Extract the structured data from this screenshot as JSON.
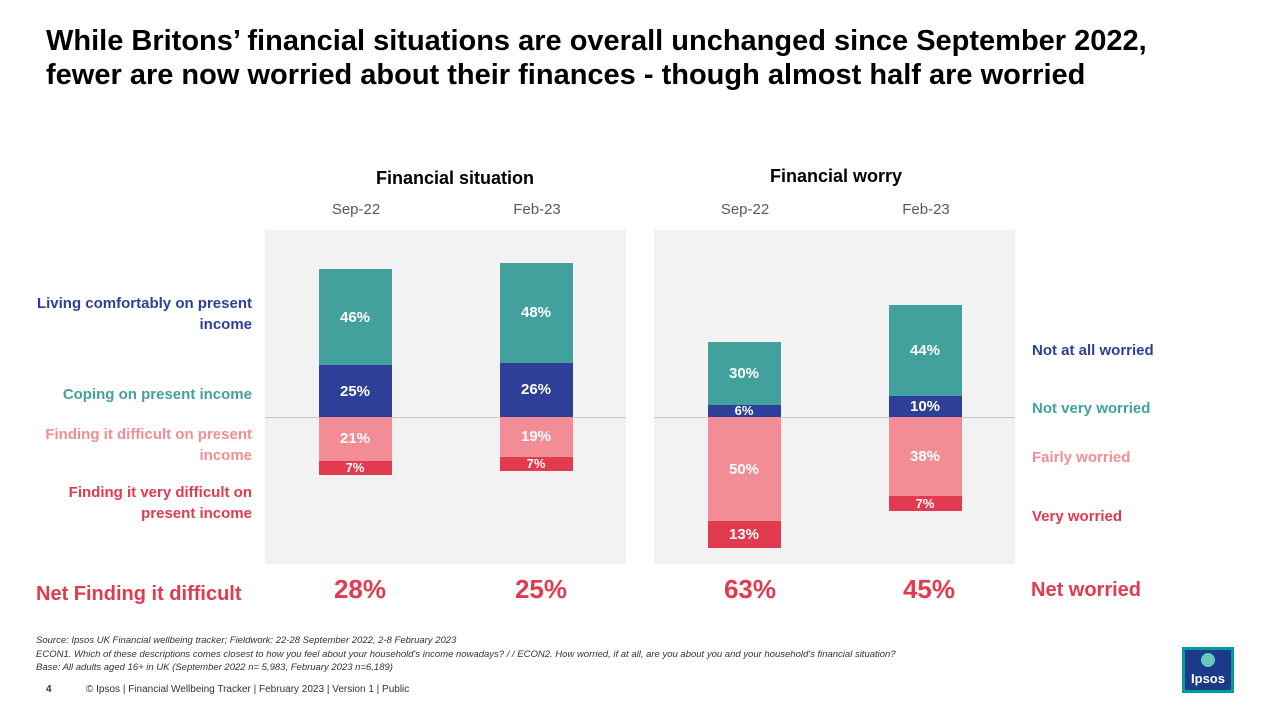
{
  "title": "While Britons’ financial situations are overall unchanged since September 2022, fewer are now worried about their finances - though almost half are worried",
  "colors": {
    "dark_blue": "#2e3f9a",
    "teal": "#42a19c",
    "pink": "#f28d96",
    "red": "#e23a4f",
    "net_red": "#e23a4f"
  },
  "chart_data": [
    {
      "type": "bar",
      "subtype": "diverging-stacked",
      "title": "Financial situation",
      "categories": [
        "Sep-22",
        "Feb-23"
      ],
      "series": [
        {
          "name": "Living comfortably on present income",
          "values": [
            25,
            26
          ],
          "direction": "up",
          "color": "#2e3f9a"
        },
        {
          "name": "Coping on present income",
          "values": [
            46,
            48
          ],
          "direction": "up",
          "color": "#42a19c"
        },
        {
          "name": "Finding it difficult on present income",
          "values": [
            21,
            19
          ],
          "direction": "down",
          "color": "#f28d96"
        },
        {
          "name": "Finding it very difficult on present income",
          "values": [
            7,
            7
          ],
          "direction": "down",
          "color": "#e23a4f"
        }
      ],
      "net_label": "Net Finding it difficult",
      "net_values": [
        "28%",
        "25%"
      ]
    },
    {
      "type": "bar",
      "subtype": "diverging-stacked",
      "title": "Financial worry",
      "categories": [
        "Sep-22",
        "Feb-23"
      ],
      "series": [
        {
          "name": "Not at all worried",
          "values": [
            6,
            10
          ],
          "direction": "up",
          "color": "#2e3f9a"
        },
        {
          "name": "Not very worried",
          "values": [
            30,
            44
          ],
          "direction": "up",
          "color": "#42a19c"
        },
        {
          "name": "Fairly worried",
          "values": [
            50,
            38
          ],
          "direction": "down",
          "color": "#f28d96"
        },
        {
          "name": "Very worried",
          "values": [
            13,
            7
          ],
          "direction": "down",
          "color": "#e23a4f"
        }
      ],
      "net_label": "Net worried",
      "net_values": [
        "63%",
        "45%"
      ]
    }
  ],
  "footnotes": [
    "Source: Ipsos UK Financial wellbeing tracker; Fieldwork: 22-28 September 2022, 2-8 February 2023",
    "ECON1. Which of these descriptions comes closest to how you feel about your household's income nowadays? / / ECON2. How worried, if at all, are you about you and your household's financial situation?",
    "Base: All adults aged 16+ in UK (September 2022 n= 5,983, February 2023 n=6,189)"
  ],
  "footer": {
    "page_number": "4",
    "text": "© Ipsos | Financial Wellbeing Tracker | February 2023 | Version 1 | Public"
  },
  "logo_text": "Ipsos"
}
